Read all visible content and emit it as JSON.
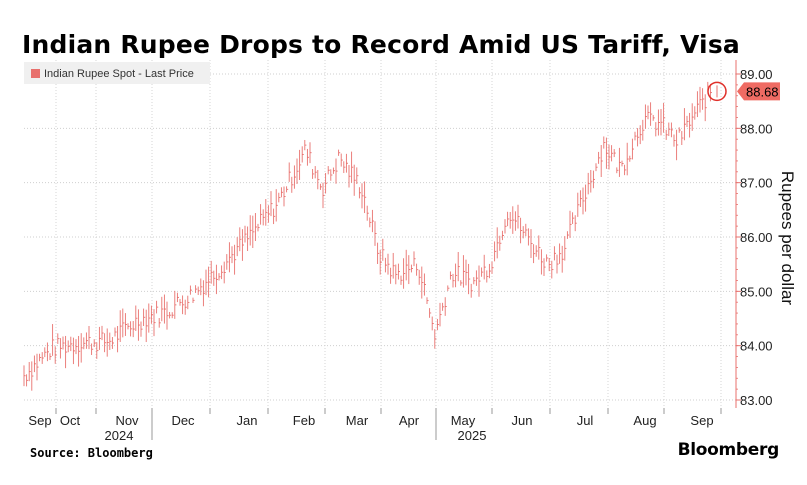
{
  "chart_data": {
    "type": "line",
    "title": "Indian Rupee Drops to Record Amid US Tariff, Visa Fees",
    "ylabel": "Rupees per dollar",
    "xlabel": "",
    "ylim": [
      83.0,
      89.2
    ],
    "yticks": [
      "83.00",
      "84.00",
      "85.00",
      "86.00",
      "87.00",
      "88.00",
      "89.00"
    ],
    "month_labels": [
      "Sep",
      "Oct",
      "Nov",
      "Dec",
      "Jan",
      "Feb",
      "Mar",
      "Apr",
      "May",
      "Jun",
      "Jul",
      "Aug",
      "Sep"
    ],
    "year_labels": [
      "2024",
      "2025"
    ],
    "series": [
      {
        "name": "Indian Rupee Spot - Last Price",
        "color": "#e8706d",
        "x": [
          0,
          0.5,
          1.0,
          1.5,
          2.0,
          2.5,
          3.0,
          3.5,
          4.0,
          4.5,
          5.0,
          5.3,
          5.6,
          6.0,
          6.3,
          6.6,
          7.0,
          7.3,
          7.6,
          8.0,
          8.3,
          8.6,
          9.0,
          9.3,
          9.6,
          10.0,
          10.3,
          10.6,
          11.0,
          11.3,
          11.6,
          12.0,
          12.2
        ],
        "values": [
          83.45,
          83.95,
          84.05,
          84.08,
          84.45,
          84.62,
          84.95,
          85.45,
          86.0,
          86.62,
          87.6,
          86.9,
          87.45,
          86.9,
          85.7,
          85.3,
          85.5,
          84.2,
          85.35,
          85.15,
          85.55,
          86.5,
          85.9,
          85.5,
          85.8,
          86.9,
          87.7,
          87.25,
          88.15,
          88.1,
          87.75,
          88.4,
          88.68
        ]
      }
    ],
    "last_value_label": "88.68",
    "legend_position": "top-left"
  },
  "source": "Source: Bloomberg",
  "brand": "Bloomberg"
}
